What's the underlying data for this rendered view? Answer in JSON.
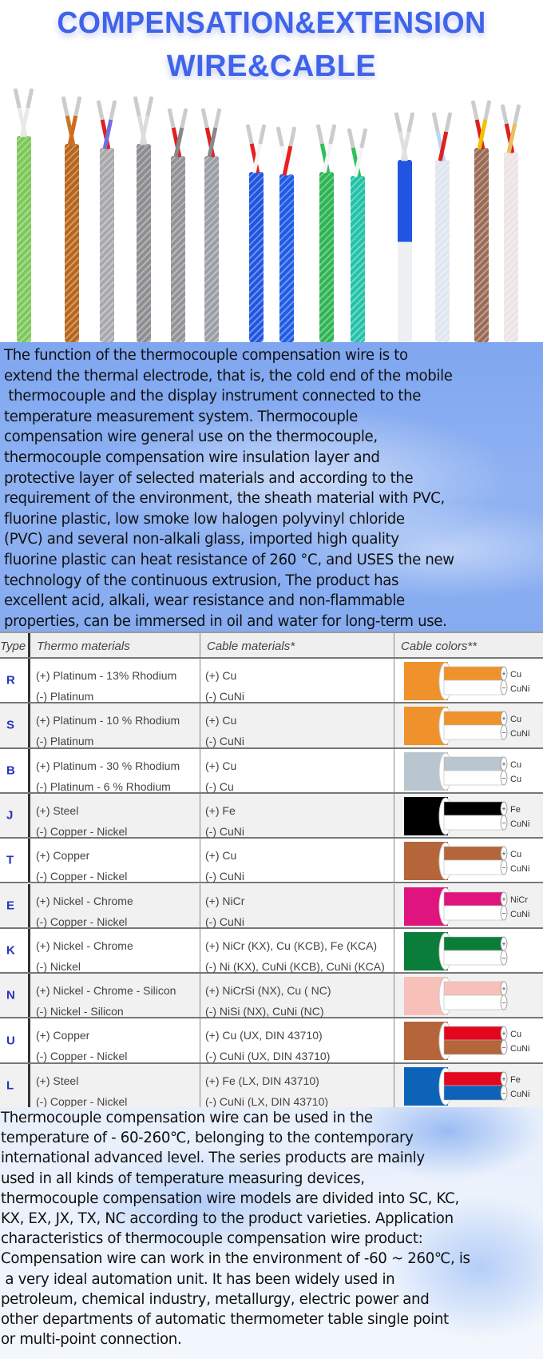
{
  "title": {
    "line1": "COMPENSATION&EXTENSION",
    "line2": "WIRE&CABLE",
    "color": "#3f63ea"
  },
  "photo": {
    "wire_colors": [
      "#7ec85a",
      "#b8651c",
      "#a9a9ad",
      "#8e8e92",
      "#939397",
      "#9a9ea6",
      "#1f55e0",
      "#1e5be6",
      "#2eb455",
      "#22c3a8",
      "#e9ecf2",
      "#dfe6f0",
      "#9a6a55",
      "#eee4e4"
    ],
    "lead_colors": [
      [
        "#e9e9e9",
        "#e9e9e9"
      ],
      [
        "#c07a2a",
        "#d2691e"
      ],
      [
        "#e02020",
        "#7070e0"
      ],
      [
        "#dcdcdc",
        "#dcdcdc"
      ],
      [
        "#e02020",
        "#888"
      ],
      [
        "#e02020",
        "#888"
      ],
      [
        "#e82020",
        "#f4f4f4"
      ],
      [
        "#f4f4f4",
        "#e82020"
      ],
      [
        "#2fc05a",
        "#f4f4f4"
      ],
      [
        "#2fc05a",
        "#f4f4f4"
      ],
      [
        "#e0e0e0",
        "#e0e0e0"
      ],
      [
        "#bcd8f0",
        "#e02020"
      ],
      [
        "#e02020",
        "#f2c200"
      ],
      [
        "#e02020",
        "#e8c060"
      ]
    ]
  },
  "description1": [
    "The function of the thermocouple compensation wire is to",
    "extend the thermal electrode, that is, the cold end of the mobile",
    " thermocouple and the display instrument connected to the",
    "temperature measurement system. Thermocouple",
    "compensation wire general use on the thermocouple,",
    "thermocouple compensation wire insulation layer and",
    "protective layer of selected materials and according to the",
    "requirement of the environment, the sheath material with PVC,",
    "fluorine plastic, low smoke low halogen polyvinyl chloride",
    "(PVC) and several non-alkali glass, imported high quality",
    "fluorine plastic can heat resistance of 260 °C, and USES the new",
    "technology of the continuous extrusion, The product has",
    "excellent acid, alkali, wear resistance and non-flammable",
    "properties, can be immersed in oil and water for long-term use."
  ],
  "table": {
    "headers": [
      "Type",
      "Thermo materials",
      "Cable materials*",
      "Cable colors**"
    ],
    "rows": [
      {
        "type": "R",
        "thermo": [
          "(+) Platinum - 13% Rhodium",
          "(-) Platinum"
        ],
        "cable": [
          "(+) Cu",
          "(-) CuNi"
        ],
        "colors": {
          "sheath": "#f0922b",
          "plus": "#f0922b",
          "minus": "#ffffff"
        },
        "labels": [
          "Cu",
          "CuNi"
        ]
      },
      {
        "type": "S",
        "thermo": [
          "(+) Platinum - 10 % Rhodium",
          "(-) Platinum"
        ],
        "cable": [
          "(+) Cu",
          "(-) CuNi"
        ],
        "colors": {
          "sheath": "#f0922b",
          "plus": "#f0922b",
          "minus": "#ffffff"
        },
        "labels": [
          "Cu",
          "CuNi"
        ]
      },
      {
        "type": "B",
        "thermo": [
          "(+) Platinum - 30 % Rhodium",
          "(-) Platinum - 6 % Rhodium"
        ],
        "cable": [
          "(+) Cu",
          "(-) Cu"
        ],
        "colors": {
          "sheath": "#b9c6cf",
          "plus": "#b9c6cf",
          "minus": "#ffffff"
        },
        "labels": [
          "Cu",
          "Cu"
        ]
      },
      {
        "type": "J",
        "thermo": [
          "(+) Steel",
          "(-) Copper - Nickel"
        ],
        "cable": [
          "(+) Fe",
          "(-) CuNi"
        ],
        "colors": {
          "sheath": "#000000",
          "plus": "#000000",
          "minus": "#ffffff"
        },
        "labels": [
          "Fe",
          "CuNi"
        ]
      },
      {
        "type": "T",
        "thermo": [
          "(+) Copper",
          "(-) Copper - Nickel"
        ],
        "cable": [
          "(+) Cu",
          "(-) CuNi"
        ],
        "colors": {
          "sheath": "#b5653a",
          "plus": "#b5653a",
          "minus": "#ffffff"
        },
        "labels": [
          "Cu",
          "CuNi"
        ]
      },
      {
        "type": "E",
        "thermo": [
          "(+) Nickel - Chrome",
          "(-) Copper - Nickel"
        ],
        "cable": [
          "(+) NiCr",
          "(-) CuNi"
        ],
        "colors": {
          "sheath": "#e0147f",
          "plus": "#e0147f",
          "minus": "#ffffff"
        },
        "labels": [
          "NiCr",
          "CuNi"
        ]
      },
      {
        "type": "K",
        "thermo": [
          "(+) Nickel - Chrome",
          "(-) Nickel"
        ],
        "cable": [
          "(+) NiCr (KX), Cu (KCB), Fe (KCA)",
          "(-) Ni (KX), CuNi (KCB), CuNi (KCA)"
        ],
        "colors": {
          "sheath": "#0b7d3b",
          "plus": "#0b7d3b",
          "minus": "#ffffff"
        },
        "labels": [
          "",
          ""
        ]
      },
      {
        "type": "N",
        "thermo": [
          "(+) Nickel - Chrome - Silicon",
          "(-) Nickel - Silicon"
        ],
        "cable": [
          "(+) NiCrSi (NX), Cu ( NC)",
          "(-) NiSi (NX), CuNi (NC)"
        ],
        "colors": {
          "sheath": "#f7c1b9",
          "plus": "#f7c1b9",
          "minus": "#ffffff"
        },
        "labels": [
          "",
          ""
        ]
      },
      {
        "type": "U",
        "thermo": [
          "(+) Copper",
          "(-) Copper - Nickel"
        ],
        "cable": [
          "(+) Cu (UX, DIN 43710)",
          "(-) CuNi (UX, DIN 43710)"
        ],
        "colors": {
          "sheath": "#b5653a",
          "plus": "#e3061c",
          "minus": "#b5653a"
        },
        "labels": [
          "Cu",
          "CuNi"
        ]
      },
      {
        "type": "L",
        "thermo": [
          "(+) Steel",
          "(-) Copper - Nickel"
        ],
        "cable": [
          "(+) Fe (LX, DIN 43710)",
          "(-) CuNi (LX, DIN 43710)"
        ],
        "colors": {
          "sheath": "#0d63b8",
          "plus": "#e3061c",
          "minus": "#0d63b8"
        },
        "labels": [
          "Fe",
          "CuNi"
        ]
      }
    ]
  },
  "description2": [
    "Thermocouple compensation wire can be used in the",
    "temperature of - 60-260℃, belonging to the contemporary",
    "international advanced level. The series products are mainly",
    "used in all kinds of temperature measuring devices,",
    "thermocouple compensation wire models are divided into SC, KC,",
    "KX, EX, JX, TX, NC according to the product varieties. Application",
    "characteristics of thermocouple compensation wire product:",
    "Compensation wire can work in the environment of -60 ~ 260℃, is",
    " a very ideal automation unit. It has been widely used in",
    "petroleum, chemical industry, metallurgy, electric power and",
    "other departments of automatic thermometer table single point",
    "or multi-point connection."
  ]
}
